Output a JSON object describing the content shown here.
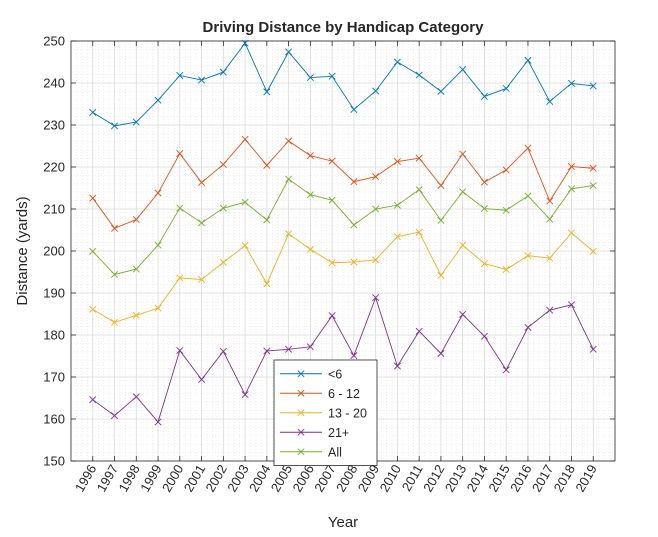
{
  "chart_data": {
    "type": "line",
    "title": "Driving Distance by Handicap Category",
    "xlabel": "Year",
    "ylabel": "Distance (yards)",
    "x": [
      "1996",
      "1997",
      "1998",
      "1999",
      "2000",
      "2001",
      "2002",
      "2003",
      "2004",
      "2005",
      "2006",
      "2007",
      "2008",
      "2009",
      "2010",
      "2011",
      "2012",
      "2013",
      "2014",
      "2015",
      "2016",
      "2017",
      "2018",
      "2019"
    ],
    "ylim": [
      150,
      250
    ],
    "yticks": [
      "150",
      "160",
      "170",
      "180",
      "190",
      "200",
      "210",
      "220",
      "230",
      "240",
      "250"
    ],
    "grid": "on (major and minor)",
    "legend_position": "bottom-center",
    "marker": "x",
    "series": [
      {
        "name": "<6",
        "color": "#0072BD",
        "values": [
          233,
          229.8,
          230.7,
          235.9,
          241.8,
          240.7,
          242.6,
          249.5,
          237.9,
          247.4,
          241.3,
          241.6,
          233.7,
          238.1,
          245.0,
          241.9,
          238.0,
          243.2,
          236.8,
          238.7,
          245.4,
          235.6,
          239.9,
          239.3
        ]
      },
      {
        "name": "6 - 12",
        "color": "#D95319",
        "values": [
          212.6,
          205.4,
          207.5,
          213.8,
          223.2,
          216.3,
          220.6,
          226.6,
          220.4,
          226.2,
          222.7,
          221.4,
          216.5,
          217.7,
          221.3,
          222.1,
          215.6,
          223.1,
          216.4,
          219.3,
          224.5,
          211.9,
          220.1,
          219.7
        ]
      },
      {
        "name": "13 - 20",
        "color": "#EDB120",
        "values": [
          186.1,
          183.0,
          184.7,
          186.4,
          193.6,
          193.2,
          197.3,
          201.3,
          192.2,
          204.1,
          200.4,
          197.2,
          197.4,
          197.9,
          203.4,
          204.5,
          194.2,
          201.4,
          197.0,
          195.6,
          198.9,
          198.3,
          204.3,
          199.9
        ]
      },
      {
        "name": "21+",
        "color": "#7E2F8E",
        "values": [
          164.6,
          160.8,
          165.3,
          159.3,
          176.3,
          169.4,
          176.1,
          165.8,
          176.2,
          176.6,
          177.2,
          184.6,
          175.1,
          188.9,
          172.6,
          180.9,
          175.6,
          184.9,
          179.7,
          171.7,
          181.8,
          185.9,
          187.2,
          176.6
        ]
      },
      {
        "name": "All",
        "color": "#77AC30",
        "values": [
          199.9,
          194.4,
          195.7,
          201.4,
          210.2,
          206.7,
          210.2,
          211.6,
          207.4,
          217.1,
          213.4,
          212.1,
          206.2,
          210.0,
          210.9,
          214.6,
          207.3,
          214.1,
          210.1,
          209.7,
          213.1,
          207.6,
          214.8,
          215.6
        ]
      }
    ]
  }
}
